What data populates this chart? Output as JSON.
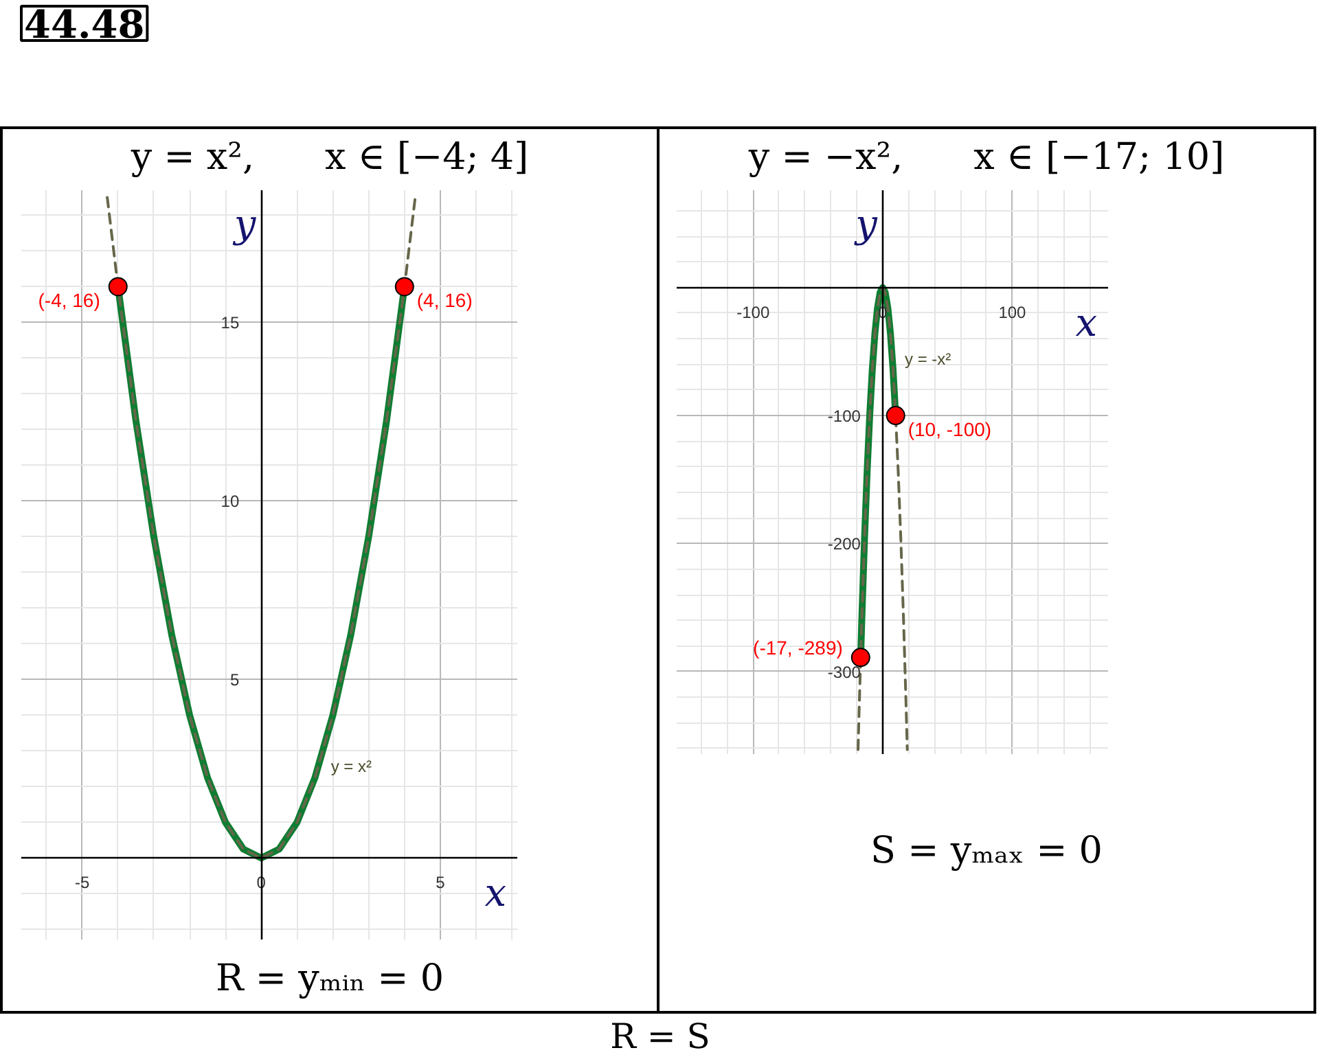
{
  "chart_data": [
    {
      "type": "line",
      "title": "y = x²,      x ∈ [−4; 4]",
      "xlabel": "x",
      "ylabel": "y",
      "xlim": [
        -6.7,
        7.15
      ],
      "ylim": [
        -2.3,
        18.7
      ],
      "xticks": [
        {
          "value": -6,
          "label": null
        },
        -5,
        {
          "value": -4,
          "label": null
        },
        {
          "value": -3,
          "label": null
        },
        {
          "value": -2,
          "label": null
        },
        {
          "value": -1,
          "label": null
        },
        0,
        {
          "value": 1,
          "label": null
        },
        {
          "value": 2,
          "label": null
        },
        {
          "value": 3,
          "label": null
        },
        {
          "value": 4,
          "label": null
        },
        5,
        {
          "value": 6,
          "label": null
        },
        {
          "value": 7,
          "label": null
        }
      ],
      "yticks": [
        {
          "value": -2,
          "label": null
        },
        {
          "value": -1,
          "label": null
        },
        {
          "value": 0,
          "label": null
        },
        {
          "value": 1,
          "label": null
        },
        {
          "value": 2,
          "label": null
        },
        {
          "value": 3,
          "label": null
        },
        {
          "value": 4,
          "label": null
        },
        5,
        {
          "value": 6,
          "label": null
        },
        {
          "value": 7,
          "label": null
        },
        {
          "value": 8,
          "label": null
        },
        {
          "value": 9,
          "label": null
        },
        10,
        {
          "value": 11,
          "label": null
        },
        {
          "value": 12,
          "label": null
        },
        {
          "value": 13,
          "label": null
        },
        {
          "value": 14,
          "label": null
        },
        15,
        {
          "value": 16,
          "label": null
        },
        {
          "value": 17,
          "label": null
        },
        {
          "value": 18,
          "label": null
        }
      ],
      "grid": true,
      "series": [
        {
          "color": "#0f7d32",
          "line_style": "solid",
          "x": [
            -4,
            -3.5,
            -3,
            -2.5,
            -2,
            -1.5,
            -1,
            -0.5,
            0,
            0.5,
            1,
            1.5,
            2,
            2.5,
            3,
            3.5,
            4
          ],
          "values": [
            16,
            12.25,
            9,
            6.25,
            4,
            2.25,
            1,
            0.25,
            0,
            0.25,
            1,
            2.25,
            4,
            6.25,
            9,
            12.25,
            16
          ]
        },
        {
          "color": "#66664a",
          "line_style": "dashed",
          "x": [
            -4.3,
            -4,
            -3.5,
            -3,
            -2.5,
            -2,
            -1.5,
            -1,
            -0.5,
            0,
            0.5,
            1,
            1.5,
            2,
            2.5,
            3,
            3.5,
            4,
            4.3
          ],
          "values": [
            18.5,
            16,
            12.25,
            9,
            6.25,
            4,
            2.25,
            1,
            0.25,
            0,
            0.25,
            1,
            2.25,
            4,
            6.25,
            9,
            12.25,
            16,
            18.5
          ]
        },
        {
          "type": "scatter",
          "color": "#ff0000",
          "marker": "circle",
          "x": [
            -4,
            4
          ],
          "values": [
            16,
            16
          ],
          "value_labels": [
            "(-4, 16)",
            "(4, 16)"
          ]
        }
      ],
      "annotations": [
        "44.48",
        {
          "text": "y = x²",
          "x": 1.6,
          "y": 2.56
        },
        "R = yₘᵢₙ = 0"
      ]
    },
    {
      "type": "line",
      "title": "y = −x²,      x ∈ [−17; 10]",
      "xlabel": "x",
      "ylabel": "y",
      "xlim": [
        -159,
        174
      ],
      "ylim": [
        -365,
        76
      ],
      "xticks": [
        {
          "value": -140,
          "label": null
        },
        {
          "value": -120,
          "label": null
        },
        -100,
        {
          "value": -80,
          "label": null
        },
        {
          "value": -60,
          "label": null
        },
        {
          "value": -40,
          "label": null
        },
        {
          "value": -20,
          "label": null
        },
        0,
        {
          "value": 20,
          "label": null
        },
        {
          "value": 40,
          "label": null
        },
        {
          "value": 60,
          "label": null
        },
        {
          "value": 80,
          "label": null
        },
        100,
        {
          "value": 120,
          "label": null
        },
        {
          "value": 140,
          "label": null
        },
        {
          "value": 160,
          "label": null
        }
      ],
      "yticks": [
        {
          "value": 60,
          "label": null
        },
        {
          "value": 40,
          "label": null
        },
        {
          "value": 20,
          "label": null
        },
        {
          "value": 0,
          "label": null
        },
        {
          "value": -20,
          "label": null
        },
        {
          "value": -40,
          "label": null
        },
        {
          "value": -60,
          "label": null
        },
        {
          "value": -80,
          "label": null
        },
        -100,
        {
          "value": -120,
          "label": null
        },
        {
          "value": -140,
          "label": null
        },
        {
          "value": -160,
          "label": null
        },
        {
          "value": -180,
          "label": null
        },
        -200,
        {
          "value": -220,
          "label": null
        },
        {
          "value": -240,
          "label": null
        },
        {
          "value": -260,
          "label": null
        },
        {
          "value": -280,
          "label": null
        },
        -300,
        {
          "value": -320,
          "label": null
        },
        {
          "value": -340,
          "label": null
        },
        {
          "value": -360,
          "label": null
        }
      ],
      "grid": true,
      "series": [
        {
          "color": "#0f7d32",
          "line_style": "solid",
          "x": [
            -17,
            -16,
            -14,
            -12,
            -10,
            -8,
            -6,
            -4,
            -2,
            0,
            2,
            4,
            6,
            8,
            10
          ],
          "values": [
            -289,
            -256,
            -196,
            -144,
            -100,
            -64,
            -36,
            -16,
            -4,
            0,
            -4,
            -16,
            -36,
            -64,
            -100
          ]
        },
        {
          "color": "#66664a",
          "line_style": "dashed",
          "x": [
            -19,
            -18,
            -16,
            -14,
            -12,
            -10,
            -8,
            -6,
            -4,
            -2,
            0,
            2,
            4,
            6,
            8,
            10,
            12,
            14,
            16,
            18,
            19
          ],
          "values": [
            -361,
            -324,
            -256,
            -196,
            -144,
            -100,
            -64,
            -36,
            -16,
            -4,
            0,
            -4,
            -16,
            -36,
            -64,
            -100,
            -144,
            -196,
            -256,
            -324,
            -361
          ]
        },
        {
          "type": "scatter",
          "color": "#ff0000",
          "marker": "circle",
          "x": [
            10,
            -17
          ],
          "values": [
            -100,
            -289
          ],
          "value_labels": [
            "(10, -100)",
            "(-17, -289)"
          ]
        }
      ],
      "annotations": [
        {
          "text": "y = -x²",
          "x": 7.5,
          "y": -56
        },
        "S = yₘₐₓ = 0",
        "R = S"
      ]
    }
  ]
}
